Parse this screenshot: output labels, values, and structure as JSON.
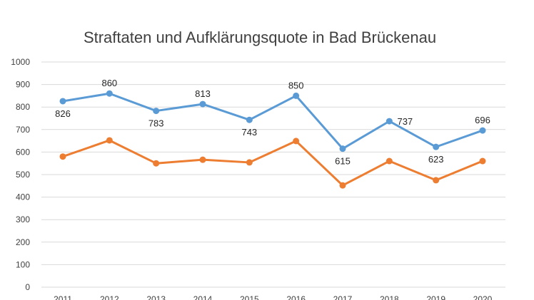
{
  "chart_data": {
    "type": "line",
    "title": "Straftaten und Aufklärungsquote in Bad Brückenau",
    "categories": [
      "2011",
      "2012",
      "2013",
      "2014",
      "2015",
      "2016",
      "2017",
      "2018",
      "2019",
      "2020"
    ],
    "series": [
      {
        "values": [
          826,
          860,
          783,
          813,
          743,
          850,
          615,
          737,
          623,
          696
        ],
        "color": "#5b9bd5",
        "data_labels": true
      },
      {
        "values": [
          580,
          652,
          550,
          566,
          554,
          649,
          452,
          560,
          475,
          560
        ],
        "color": "#ed7d31",
        "data_labels": false
      }
    ],
    "ylim": [
      0,
      1000
    ],
    "yticks": [
      0,
      100,
      200,
      300,
      400,
      500,
      600,
      700,
      800,
      900,
      1000
    ],
    "grid": true,
    "xlabel": "",
    "ylabel": ""
  }
}
